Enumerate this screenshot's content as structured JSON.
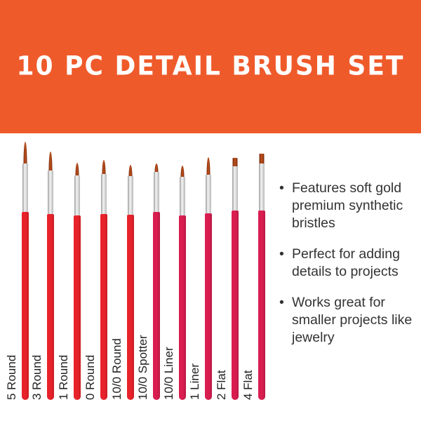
{
  "header": {
    "title": "10 PC DETAIL BRUSH SET",
    "background_color": "#ef5a2b"
  },
  "brushes": [
    {
      "label": "5 Round",
      "type": "round",
      "handle_color": "#e8222a"
    },
    {
      "label": "3 Round",
      "type": "round",
      "handle_color": "#e8222a"
    },
    {
      "label": "1 Round",
      "type": "round",
      "handle_color": "#e8222a"
    },
    {
      "label": "0 Round",
      "type": "round",
      "handle_color": "#e8222a"
    },
    {
      "label": "10/0 Round",
      "type": "round",
      "handle_color": "#e8222a"
    },
    {
      "label": "10/0 Spotter",
      "type": "round",
      "handle_color": "#d91d4f"
    },
    {
      "label": "10/0 Liner",
      "type": "round",
      "handle_color": "#d91d4f"
    },
    {
      "label": "1 Liner",
      "type": "round",
      "handle_color": "#d91d4f"
    },
    {
      "label": "2 Flat",
      "type": "flat",
      "handle_color": "#d91d4f"
    },
    {
      "label": "4 Flat",
      "type": "flat",
      "handle_color": "#d91d4f"
    }
  ],
  "bullets": [
    {
      "symbol": "•",
      "text": "Features soft gold premium synthetic bristles"
    },
    {
      "symbol": "•",
      "text": "Perfect for adding details to projects"
    },
    {
      "symbol": "•",
      "text": "Works great for smaller projects like jewelry"
    }
  ]
}
